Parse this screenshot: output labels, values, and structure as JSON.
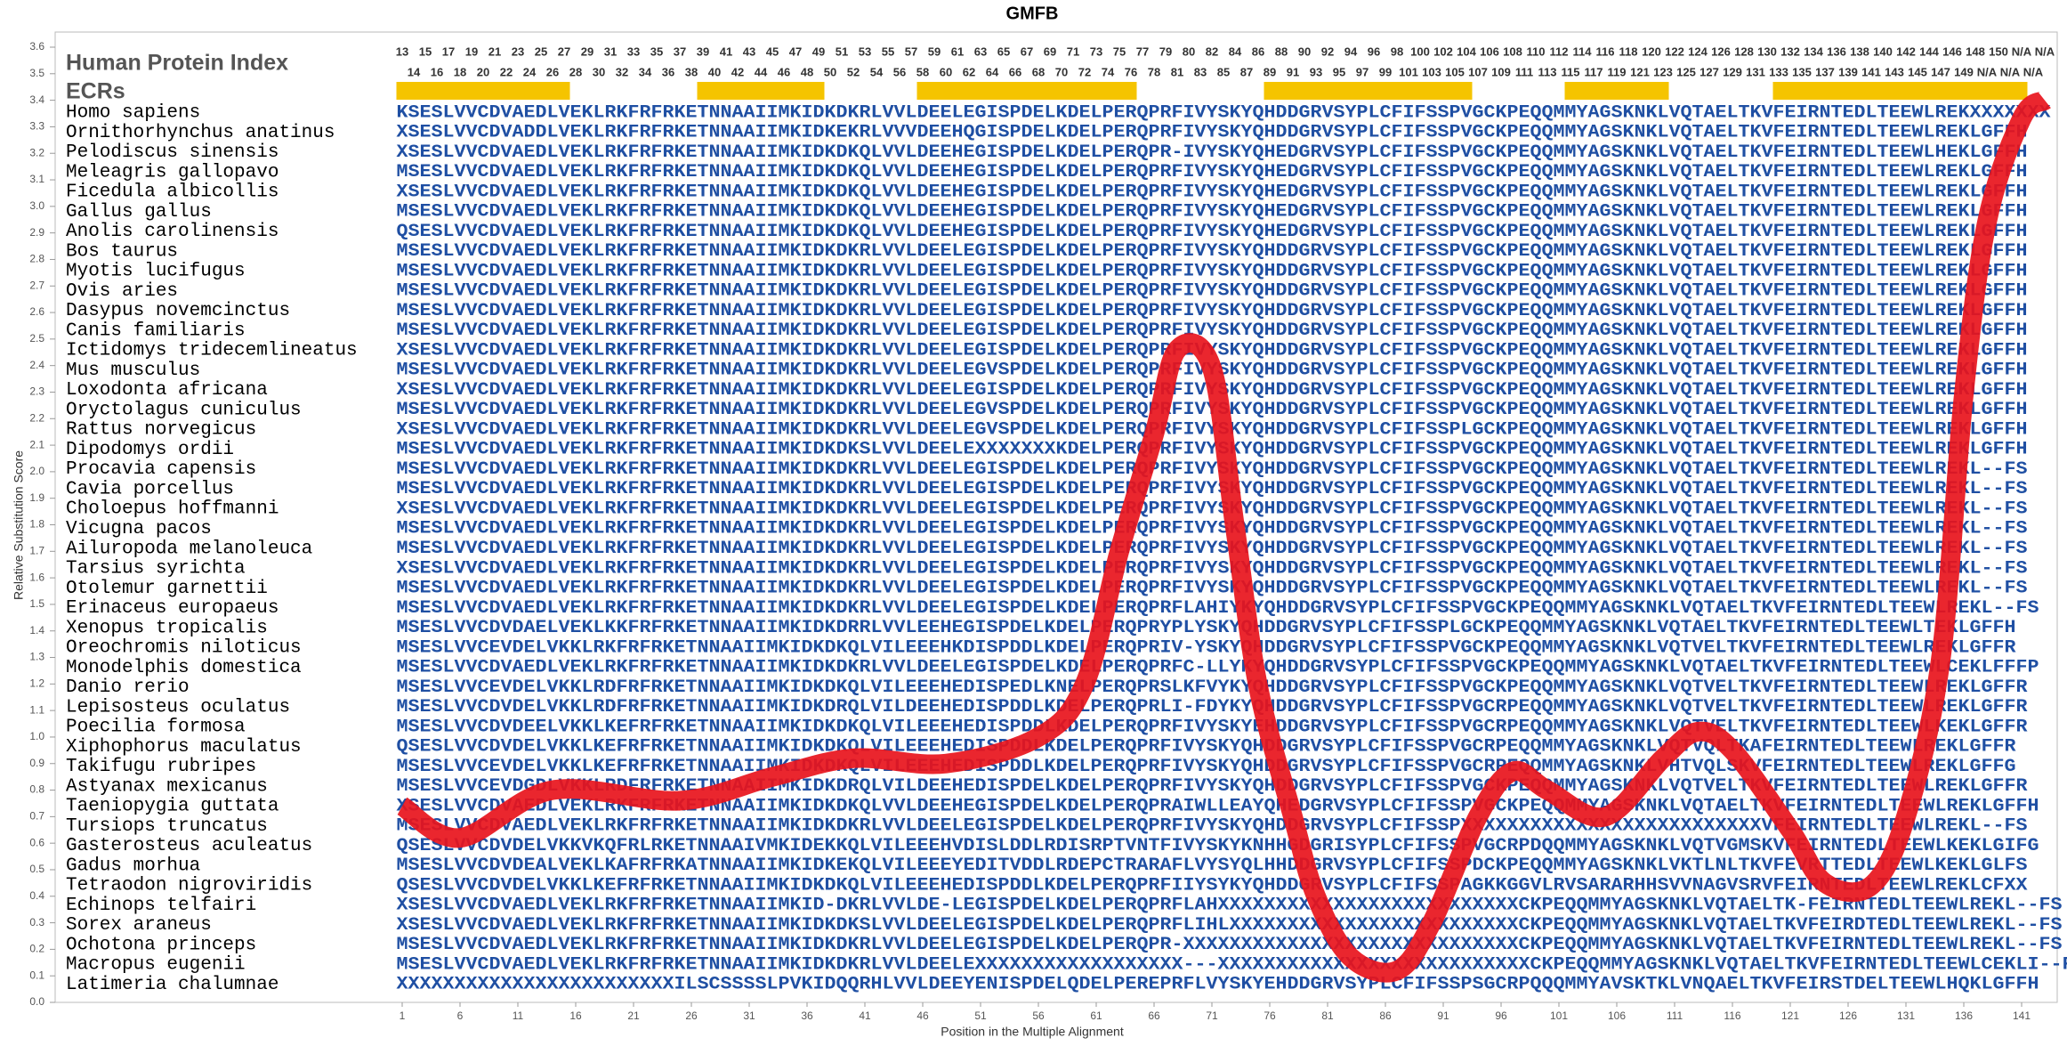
{
  "chart_data": {
    "type": "alignment",
    "title": "GMFB",
    "xlabel": "Position in the Multiple Alignment",
    "ylabel": "Relative Substitution Score",
    "index_label": "Human Protein Index",
    "ecr_label": "ECRs",
    "index_top": [
      13,
      15,
      17,
      19,
      21,
      23,
      25,
      27,
      29,
      31,
      33,
      35,
      37,
      39,
      41,
      43,
      45,
      47,
      49,
      51,
      53,
      55,
      57,
      59,
      61,
      63,
      65,
      67,
      69,
      71,
      73,
      75,
      77,
      79,
      80,
      82,
      84,
      86,
      88,
      90,
      92,
      94,
      96,
      98,
      100,
      102,
      104,
      106,
      108,
      110,
      112,
      114,
      116,
      118,
      120,
      122,
      124,
      126,
      128,
      130,
      132,
      134,
      136,
      138,
      140,
      142,
      144,
      146,
      148,
      150,
      "N/A",
      "N/A"
    ],
    "index_bottom": [
      14,
      16,
      18,
      20,
      22,
      24,
      26,
      28,
      30,
      32,
      34,
      36,
      38,
      40,
      42,
      44,
      46,
      48,
      50,
      52,
      54,
      56,
      58,
      60,
      62,
      64,
      66,
      68,
      70,
      72,
      74,
      76,
      78,
      81,
      83,
      85,
      87,
      89,
      91,
      93,
      95,
      97,
      99,
      101,
      103,
      105,
      107,
      109,
      111,
      113,
      115,
      117,
      119,
      121,
      123,
      125,
      127,
      129,
      131,
      133,
      135,
      137,
      139,
      141,
      143,
      145,
      147,
      149,
      "N/A",
      "N/A",
      "N/A"
    ],
    "ecrs": [
      [
        1,
        15
      ],
      [
        27,
        37
      ],
      [
        46,
        64
      ],
      [
        76,
        93
      ],
      [
        102,
        110
      ],
      [
        120,
        141
      ]
    ],
    "ecr_color": "#f5c400",
    "sequence_color": "#1f4fa3",
    "species": [
      {
        "name": "Homo sapiens",
        "sequence": "KSESLVVCDVAEDLVEKLRKFRFRKETNNAAIIMKIDKDKRLVVLDEELEGISPDELKDELPERQPRFIVYSKYQHDDGRVSYPLCFIFSSPVGCKPEQQMMYAGSKNKLVQTAELTKVFEIRNTEDLTEEWLREKXXXXXXX"
      },
      {
        "name": "Ornithorhynchus anatinus",
        "sequence": "XSESLVVCDVADDLVEKLRKFRFRKETNNAAIIMKIDKEKRLVVVDEEHQGISPDELKDELPERQPRFIVYSKYQHDDGRVSYPLCFIFSSPVGCKPEQQMMYAGSKNKLVQTAELTKVFEIRNTEDLTEEWLREKLGFFH"
      },
      {
        "name": "Pelodiscus sinensis",
        "sequence": "XSESLVVCDVAEDLVEKLRKFRFRKETNNAAIIMKIDKDKQLVVLDEEHEGISPDELKDELPERQPR-IVYSKYQHEDGRVSYPLCFIFSSPVGCKPEQQMMYAGSKNKLVQTAELTKVFEIRNTEDLTEEWLHEKLGFFH"
      },
      {
        "name": "Meleagris gallopavo",
        "sequence": "MSESLVVCDVAEDLVEKLRKFRFRKETNNAAIIMKIDKDKQLVVLDEEHEGISPDELKDELPERQPRFIVYSKYQHEDGRVSYPLCFIFSSPVGCKPEQQMMYAGSKNKLVQTAELTKVFEIRNTEDLTEEWLREKLGFFH"
      },
      {
        "name": "Ficedula albicollis",
        "sequence": "XSESLVVCDVAEDLVEKLRKFRFRKETNNAAIIMKIDKDKQLVVLDEEHEGISPDELKDELPERQPRFIVYSKYQHEDGRVSYPLCFIFSSPVGCKPEQQMMYAGSKNKLVQTAELTKVFEIRNTEDLTEEWLREKLGFFH"
      },
      {
        "name": "Gallus gallus",
        "sequence": "MSESLVVCDVAEDLVEKLRKFRFRKETNNAAIIMKIDKDKQLVVLDEEHEGISPDELKDELPERQPRFIVYSKYQHEDGRVSYPLCFIFSSPVGCKPEQQMMYAGSKNKLVQTAELTKVFEIRNTEDLTEEWLREKLGFFH"
      },
      {
        "name": "Anolis carolinensis",
        "sequence": "QSESLVVCDVAEDLVEKLRKFRFRKETNNAAIIMKIDKDKQLVVLDEEHEGISPDELKDELPERQPRFIVYSKYQHEDGRVSYPLCFIFSSPVGCKPEQQMMYAGSKNKLVQTAELTKVFEIRNTEDLTEEWLREKLGFFH"
      },
      {
        "name": "Bos taurus",
        "sequence": "MSESLVVCDVAEDLVEKLRKFRFRKETNNAAIIMKIDKDKRLVVLDEELEGISPDELKDELPERQPRFIVYSKYQHDDGRVSYPLCFIFSSPVGCKPEQQMMYAGSKNKLVQTAELTKVFEIRNTEDLTEEWLREKLGFFH"
      },
      {
        "name": "Myotis lucifugus",
        "sequence": "MSESLVVCDVAEDLVEKLRKFRFRKETNNAAIIMKIDKDKRLVVLDEELEGISPDELKDELPERQPRFIVYSKYQHDDGRVSYPLCFIFSSPVGCKPEQQMMYAGSKNKLVQTAELTKVFEIRNTEDLTEEWLREKLGFFH"
      },
      {
        "name": "Ovis aries",
        "sequence": "MSESLVVCDVAEDLVEKLRKFRFRKETNNAAIIMKIDKDKRLVVLDEELEGISPDELKDELPERQPRFIVYSKYQHDDGRVSYPLCFIFSSPVGCKPEQQMMYAGSKNKLVQTAELTKVFEIRNTEDLTEEWLREKLGFFH"
      },
      {
        "name": "Dasypus novemcinctus",
        "sequence": "MSESLVVCDVAEDLVEKLRKFRFRKETNNAAIIMKIDKDKRLVVLDEELEGISPDELKDELPERQPRFIVYSKYQHDDGRVSYPLCFIFSSPVGCKPEQQMMYAGSKNKLVQTAELTKVFEIRNTEDLTEEWLREKLGFFH"
      },
      {
        "name": "Canis familiaris",
        "sequence": "MSESLVVCDVAEDLVEKLRKFRFRKETNNAAIIMKIDKDKRLVVLDEELEGISPDELKDELPERQPRFIVYSKYQHDDGRVSYPLCFIFSSPVGCKPEQQMMYAGSKNKLVQTAELTKVFEIRNTEDLTEEWLREKLGFFH"
      },
      {
        "name": "Ictidomys tridecemlineatus",
        "sequence": "XSESLVVCDVAEDLVEKLRKFRFRKETNNAAIIMKIDKDKRLVVLDEELEGISPDELKDELPERQPRFIVYSKYQHDDGRVSYPLCFIFSSPVGCKPEQQMMYAGSKNKLVQTAELTKVFEIRNTEDLTEEWLREKLGFFH"
      },
      {
        "name": "Mus musculus",
        "sequence": "MSESLVVCDVAEDLVEKLRKFRFRKETNNAAIIMKIDKDKRLVVLDEELEGVSPDELKDELPERQPRFIVYSKYQHDDGRVSYPLCFIFSSPVGCKPEQQMMYAGSKNKLVQTAELTKVFEIRNTEDLTEEWLREKLGFFH"
      },
      {
        "name": "Loxodonta africana",
        "sequence": "XSESLVVCDVAEDLVEKLRKFRFRKETNNAAIIMKIDKDKRLVVLDEELEGISPDELKDELPERQPRFIVYSKYQHDDGRVSYPLCFIFSSPVGCKPEQQMMYAGSKNKLVQTAELTKVFEIRNTEDLTEEWLREKLGFFH"
      },
      {
        "name": "Oryctolagus cuniculus",
        "sequence": "MSESLVVCDVAEDLVEKLRKFRFRKETNNAAIIMKIDKDKRLVVLDEELEGVSPDELKDELPERQPRFIVYSKYQHDDGRVSYPLCFIFSSPVGCKPEQQMMYAGSKNKLVQTAELTKVFEIRNTEDLTEEWLREKLGFFH"
      },
      {
        "name": "Rattus norvegicus",
        "sequence": "XSESLVVCDVAEDLVEKLRKFRFRKETNNAAIIMKIDKDKRLVVLDEELEGVSPDELKDELPERQPRFIVYSKYQHDDGRVSYPLCFIFSSPLGCKPEQQMMYAGSKNKLVQTAELTKVFEIRNTEDLTEEWLREKLGFFH"
      },
      {
        "name": "Dipodomys ordii",
        "sequence": "MSESLVVCDVAEDLVEKLRKFRFRKETNNAAIIMKIDKDKSLVVLDEELEXXXXXXXKDELPERQPRFIVYSKYQHDDGRVSYPLCFIFSSPVGCKPEQQMMYAGSKNKLVQTAELTKVFEIRNTEDLTEEWLREKLGFFH"
      },
      {
        "name": "Procavia capensis",
        "sequence": "MSESLVVCDVAEDLVEKLRKFRFRKETNNAAIIMKIDKDKRLVVLDEELEGISPDELKDELPERQPRFIVYSKYQHDDGRVSYPLCFIFSSPVGCKPEQQMMYAGSKNKLVQTAELTKVFEIRNTEDLTEEWLREKL--FS"
      },
      {
        "name": "Cavia porcellus",
        "sequence": "MSESLVVCDVAEDLVEKLRKFRFRKETNNAAIIMKIDKDKRLVVLDEELEGISPDELKDELPERQPRFIVYSKYQHDDGRVSYPLCFIFSSPVGCKPEQQMMYAGSKNKLVQTAELTKVFEIRNTEDLTEEWLREKL--FS"
      },
      {
        "name": "Choloepus hoffmanni",
        "sequence": "XSESLVVCDVAEDLVEKLRKFRFRKETNNAAIIMKIDKDKRLVVLDEELEGISPDELKDELPERQPRFIVYSKYQHDDGRVSYPLCFIFSSPVGCKPEQQMMYAGSKNKLVQTAELTKVFEIRNTEDLTEEWLREKL--FS"
      },
      {
        "name": "Vicugna pacos",
        "sequence": "MSESLVVCDVAEDLVEKLRKFRFRKETNNAAIIMKIDKDKRLVVLDEELEGISPDELKDELPERQPRFIVYSKYQHDDGRVSYPLCFIFSSPVGCKPEQQMMYAGSKNKLVQTAELTKVFEIRNTEDLTEEWLREKL--FS"
      },
      {
        "name": "Ailuropoda melanoleuca",
        "sequence": "MSESLVVCDVAEDLVEKLRKFRFRKETNNAAIIMKIDKDKRLVVLDEELEGISPDELKDELPERQPRFIVYSKYQHDDGRVSYPLCFIFSSPVGCKPEQQMMYAGSKNKLVQTAELTKVFEIRNTEDLTEEWLREKL--FS"
      },
      {
        "name": "Tarsius syrichta",
        "sequence": "XSESLVVCDVAEDLVEKLRKFRFRKETNNAAIIMKIDKDKRLVVLDEELEGISPDELKDELPERQPRFIVYSKYQHDDGRVSYPLCFIFSSPVGCKPEQQMMYAGSKNKLVQTAELTKVFEIRNTEDLTEEWLREKL--FS"
      },
      {
        "name": "Otolemur garnettii",
        "sequence": "MSESLVVCDVAEDLVEKLRKFRFRKETNNAAIIMKIDKDKRLVVLDEELEGISPDELKDELPERQPRFIVYSKYQHDDGRVSYPLCFIFSSPVGCKPEQQMMYAGSKNKLVQTAELTKVFEIRNTEDLTEEWLREKL--FS"
      },
      {
        "name": "Erinaceus europaeus",
        "sequence": "MSESLVVCDVAEDLVEKLRKFRFRKETNNAAIIMKIDKDKRLVVLDEELEGISPDELKDELPERQPRFLAHIYKYQHDDGRVSYPLCFIFSSPVGCKPEQQMMYAGSKNKLVQTAELTKVFEIRNTEDLTEEWLREKL--FS"
      },
      {
        "name": "Xenopus tropicalis",
        "sequence": "MSESLVVCDVDAELVEKLKKFRFRKETNNAAIIMKIDKDRRLVVLEEHEGISPDELKDELPERQPRYPLYSKYQHDDGRVSYPLCFIFSSPLGCKPEQQMMYAGSKNKLVQTAELTKVFEIRNTEDLTEEWLTEKLGFFH"
      },
      {
        "name": "Oreochromis niloticus",
        "sequence": "MSESLVVCEVDELVKKLRKFRFRKETNNAAIIMKIDKDKQLVILEEEHKDISPDDLKDELPERQPRIV-YSKYQHDDGRVSYPLCFIFSSPVGCKPEQQMMYAGSKNKLVQTVELTKVFEIRNTEDLTEEWLREKLGFFR"
      },
      {
        "name": "Monodelphis domestica",
        "sequence": "MSESLVVCDVAEDLVEKLRKFRFRKETNNAAIIMKIDKDKRLVVLDEELEGISPDELKDELPERQPRFC-LLYKYQHDDGRVSYPLCFIFSSPVGCKPEQQMMYAGSKNKLVQTAELTKVFEIRNTEDLTEEWLCEKLFFFP"
      },
      {
        "name": "Danio rerio",
        "sequence": "MSESLVVCEVDELVKKLRDFRFRKETNNAAIIMKIDKDKQLVILEEEHEDISPEDLKNELPERQPRSLKFVYKYQHDDGRVSYPLCFIFSSPVGCKPEQQMMYAGSKNKLVQTVELTKVFEIRNTEDLTEEWLREKLGFFR"
      },
      {
        "name": "Lepisosteus oculatus",
        "sequence": "MSESLVVCDVDELVKKLRDFRFRKETNNAAIIMKIDKDRQLVILDEEHEDISPDDLKDELPERQPRLI-FDYKYQHDDGRVSYPLCFIFSSPVGCRPEQQMMYAGSKNKLVQTVELTKVFEIRNTEDLTEEWLREKLGFFR"
      },
      {
        "name": "Poecilia formosa",
        "sequence": "MSESLVVCDVDEELVKKLKEFRFRKETNNAAIIMKIDKDKQLVILEEEHEDISPDDLKDELPERQPRFIVYSKYEHDDGRVSYPLCFIFSSPVGCRPEQQMMYAGSKNKLVQTVELTKVFEIRNTEDLTEEWLKEKLGFFR"
      },
      {
        "name": "Xiphophorus maculatus",
        "sequence": "QSESLVVCDVDELVKKLKEFRFRKETNNAAIIMKIDKDKQLVILEEEHEDISPDDLKDELPERQPRFIVYSKYQHDDGRVSYPLCFIFSSPVGCRPEQQMMYAGSKNKLVQTVQLTKAFEIRNTEDLTEEWLREKLGFFR"
      },
      {
        "name": "Takifugu rubripes",
        "sequence": "MSESLVVCEVDELVKKLKEFRFRKETNNAAIIMKIDKDKQLVILEEEHEDISPDDLKDELPERQPRFIVYSKYQHDDGRVSYPLCFIFSSPVGCRPEQQMMYAGSKNKLVHTVQLSKVFEIRNTEDLTEEWLREKLGFFG"
      },
      {
        "name": "Astyanax mexicanus",
        "sequence": "MSESLVVCEVDGDLVKKLRDFRFRKETNNAAIIMKIDKDRQLVILDEEHEDISPDELKDELPERQPRFIVYSKYQHDDGRVSYPLCFIFSSPVGCKPEQQMMYAGSKNKLVQTVELTKVFEIRNTEDLTEEWLREKLGFFR"
      },
      {
        "name": "Taeniopygia guttata",
        "sequence": "XSESLVVCDVAEDLVEKLRKFRFRKETNNAAIIMKIDKDKQLVVLDEEHEGISPDELKDELPERQPRAIWLLEAYQHEDGRVSYPLCFIFSSPVGCKPEQQMMYAGSKNKLVQTAELTKVFEIRNTEDLTEEWLREKLGFFH"
      },
      {
        "name": "Tursiops truncatus",
        "sequence": "MSESLVVCDVAEDLVEKLRKFRFRKETNNAAIIMKIDKDKRLVVLDEELEGISPDELKDELPERQPRFIVYSKYQHDDGRVSYPLCFIFSSPXXXXXXXXXXXXXXXXXXXXXXXXXXVFEIRNTEDLTEEWLREKL--FS"
      },
      {
        "name": "Gasterosteus aculeatus",
        "sequence": "QSESLVVCDVDELVKKVKQFRLRKETNNAAIVMKIDEKKQLVILEEEHVDISLDDLRDISRPTVNTFIVYSKYKNHHGDGRISYPLCFIFSSPVGCRPDQQMMYAGSKNKLVQTVGMSKVFEIRNTEDLTEEWLKEKLGIFG"
      },
      {
        "name": "Gadus morhua",
        "sequence": "MSESLVVCDVDEALVEKLKAFRFRKATNNAAIIMKIDKEKQLVILEEEYEDITVDDLRDEPCTRARAFLVYSYQLHHDDGRVSYPLCFIFSSPDCKPEQQMMYAGSKNKLVKTLNLTKVFEVRTTEDLTEEWLKEKLGLFS"
      },
      {
        "name": "Tetraodon nigroviridis",
        "sequence": "QSESLVVCDVDELVKKLKEFRFRKETNNAAIIMKIDKDKQLVILEEEHEDISPDDLKDELPERQPRFIIYSYKYQHDDGRVSYPLCFIFSSPAGKKGGVLRVSARARHHSVVNAGVSRVFEIRNTEDLTEEWLREKLCFXX"
      },
      {
        "name": "Echinops telfairi",
        "sequence": "XSESLVVCDVAEDLVEKLRKFRFRKETNNAAIIMKID-DKRLVVLDE-LEGISPDELKDELPERQPRFLAHXXXXXXXXXXXXXXXXXXXXXXXXXXCKPEQQMMYAGSKNKLVQTAELTK-FEIRNTEDLTEEWLREKL--FS"
      },
      {
        "name": "Sorex araneus",
        "sequence": "XSESLVVCDVAEDLVEKLRKFRFRKETNNAAIIMKIDKDKSLVVLDEELEGISPDELKDELPERQPRFLIHLXXXXXXXXXXXXXXXXXXXXXXXXXCKPEQQMMYAGSKNKLVQTAELTKVFEIRDTEDLTEEWLREKL--FS"
      },
      {
        "name": "Ochotona princeps",
        "sequence": "MSESLVVCDVAEDLVEKLRKFRFRKETNNAAIIMKIDKDKRLVVLDEELEGISPDELKDELPERQPR-XXXXXXXXXXXXXXXXXXXXXXXXXXXXXCKPEQQMMYAGSKNKLVQTAELTKVFEIRNTEDLTEEWLREKL--FS"
      },
      {
        "name": "Macropus eugenii",
        "sequence": "MSESLVVCDVAEDLVEKLRKFRFRKETNNAAIIMKIDKDKRLVVLDEELEXXXXXXXXXXXXXXXXXX---XXXXXXXXXXXXXXXXXXXXXXXXXXXCKPEQQMMYAGSKNKLVQTAELTKVFEIRNTEDLTEEWLCEKLI--FS"
      },
      {
        "name": "Latimeria chalumnae",
        "sequence": "XXXXXXXXXXXXXXXXXXXXXXXXILSCSSSSLPVKIDQQRHLVVLDEEYENISPDELQDELPEREPRFLVYSKYEHDDGRVSYPLCFIFSSPSGCRPQQQMMYAVSKTKLVNQAELTKVFEIRSTDELTEEWLHQKLGFFH"
      }
    ],
    "xlim": [
      0.5,
      143.5
    ],
    "xticks": [
      1,
      6,
      11,
      16,
      21,
      26,
      31,
      36,
      41,
      46,
      51,
      56,
      61,
      66,
      71,
      76,
      81,
      86,
      91,
      96,
      101,
      106,
      111,
      116,
      121,
      126,
      131,
      136,
      141
    ],
    "ylim": [
      0,
      3.6
    ],
    "yticks": [
      {
        "value": 0,
        "label": "0.0"
      },
      0.1,
      0.2,
      0.3,
      0.4,
      0.5,
      0.6,
      0.7,
      0.8,
      0.9,
      {
        "value": 1,
        "label": "1.0"
      },
      1.1,
      1.2,
      1.3,
      1.4,
      1.5,
      1.6,
      1.7,
      1.8,
      1.9,
      {
        "value": 2,
        "label": "2.0"
      },
      2.1,
      2.2,
      2.3,
      2.4,
      2.5,
      2.6,
      2.7,
      2.8,
      2.9,
      {
        "value": 3,
        "label": "3.0"
      },
      3.1,
      3.2,
      3.3,
      3.4,
      3.5,
      3.6
    ],
    "series": [
      {
        "color": "#e8141c",
        "x": [
          1,
          6,
          14,
          25,
          33,
          40,
          48,
          56,
          60,
          63,
          66,
          68,
          71,
          73,
          75,
          78,
          80,
          83,
          87,
          90,
          94,
          97,
          100,
          105,
          110,
          113,
          116,
          121,
          124,
          128,
          131,
          134,
          136,
          138,
          141,
          143
        ],
        "values": [
          0.74,
          0.62,
          0.8,
          0.76,
          0.85,
          0.92,
          0.9,
          1.0,
          1.2,
          1.7,
          2.14,
          2.46,
          2.39,
          1.79,
          1.19,
          0.7,
          0.4,
          0.17,
          0.12,
          0.3,
          0.7,
          0.87,
          0.8,
          0.7,
          0.92,
          1.02,
          0.95,
          0.65,
          0.45,
          0.44,
          0.7,
          1.29,
          2.29,
          2.94,
          3.33,
          3.4
        ]
      }
    ]
  }
}
